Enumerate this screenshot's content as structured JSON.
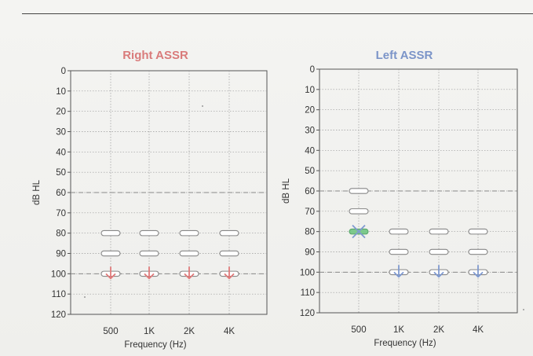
{
  "colors": {
    "right_title": "#d97b7b",
    "left_title": "#7b94c8",
    "right_arrow": "#e07a7a",
    "left_arrow": "#7f9ad0",
    "marker_fill": "#ffffff",
    "marker_stroke": "#888888",
    "left_threshold_fill": "#7cc98c",
    "left_threshold_x": "#7f9ad0",
    "grid": "#9a9a9a",
    "dashed_ref": "#888888"
  },
  "chart_data": [
    {
      "type": "scatter",
      "title": "Right ASSR",
      "xlabel": "Frequency (Hz)",
      "ylabel": "dB HL",
      "y_ticks": [
        "0",
        "10",
        "20",
        "30",
        "40",
        "50",
        "60",
        "70",
        "80",
        "90",
        "100",
        "110",
        "120"
      ],
      "x_ticks": [
        "500",
        "1K",
        "2K",
        "4K"
      ],
      "ylim": [
        0,
        120
      ],
      "y_inverted": true,
      "reference_lines_db": [
        60,
        100
      ],
      "tested_levels": [
        {
          "freq": "500",
          "levels": [
            80,
            90,
            100
          ]
        },
        {
          "freq": "1K",
          "levels": [
            80,
            90,
            100
          ]
        },
        {
          "freq": "2K",
          "levels": [
            80,
            90,
            100
          ]
        },
        {
          "freq": "4K",
          "levels": [
            80,
            90,
            100
          ]
        }
      ],
      "no_response": [
        {
          "freq": "500",
          "level": 100
        },
        {
          "freq": "1K",
          "level": 100
        },
        {
          "freq": "2K",
          "level": 100
        },
        {
          "freq": "4K",
          "level": 100
        }
      ],
      "thresholds": []
    },
    {
      "type": "scatter",
      "title": "Left ASSR",
      "xlabel": "Frequency (Hz)",
      "ylabel": "dB HL",
      "y_ticks": [
        "0",
        "10",
        "20",
        "30",
        "40",
        "50",
        "60",
        "70",
        "80",
        "90",
        "100",
        "110",
        "120"
      ],
      "x_ticks": [
        "500",
        "1K",
        "2K",
        "4K"
      ],
      "ylim": [
        0,
        120
      ],
      "y_inverted": true,
      "reference_lines_db": [
        60,
        100
      ],
      "tested_levels": [
        {
          "freq": "500",
          "levels": [
            60,
            70,
            80
          ]
        },
        {
          "freq": "1K",
          "levels": [
            80,
            90,
            100
          ]
        },
        {
          "freq": "2K",
          "levels": [
            80,
            90,
            100
          ]
        },
        {
          "freq": "4K",
          "levels": [
            80,
            90,
            100
          ]
        }
      ],
      "no_response": [
        {
          "freq": "1K",
          "level": 100
        },
        {
          "freq": "2K",
          "level": 100
        },
        {
          "freq": "4K",
          "level": 100
        }
      ],
      "thresholds": [
        {
          "freq": "500",
          "level": 80
        }
      ]
    }
  ]
}
